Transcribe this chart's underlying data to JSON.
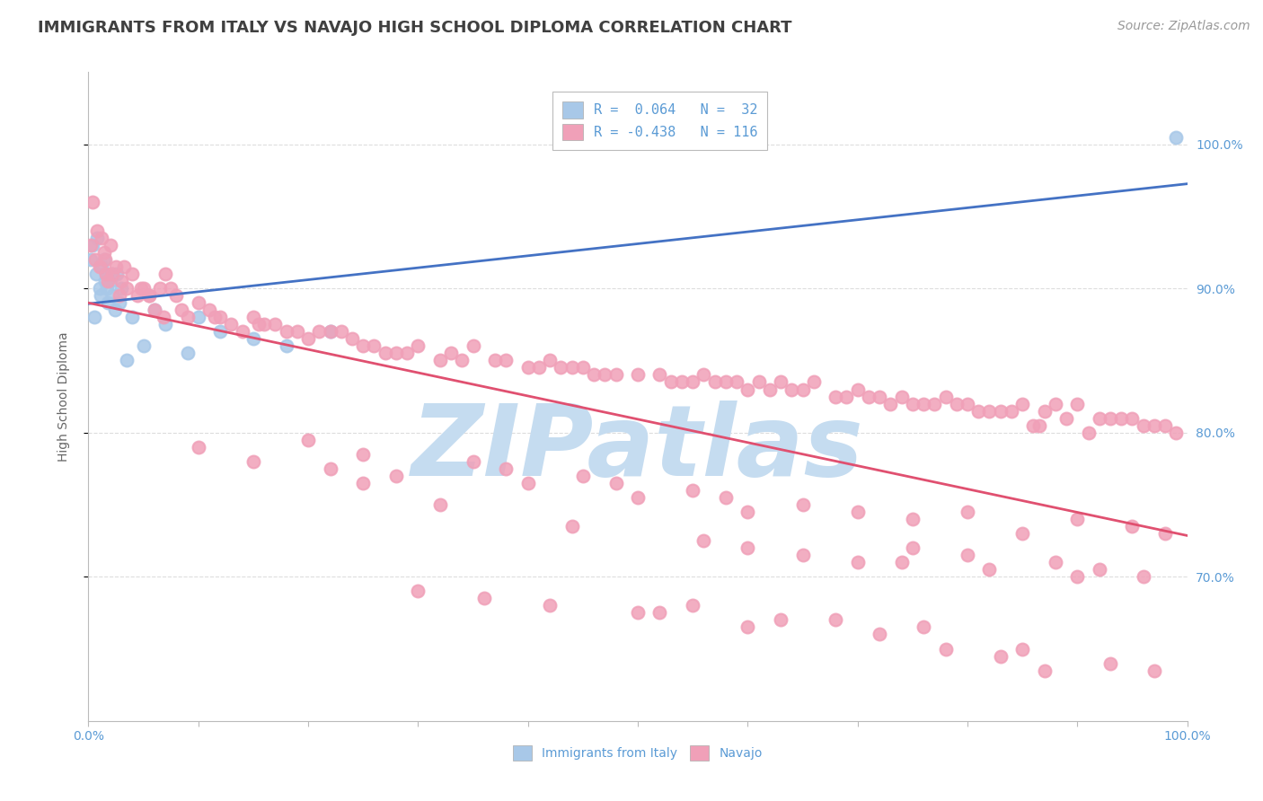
{
  "title": "IMMIGRANTS FROM ITALY VS NAVAJO HIGH SCHOOL DIPLOMA CORRELATION CHART",
  "source_text": "Source: ZipAtlas.com",
  "ylabel": "High School Diploma",
  "watermark": "ZIPatlas",
  "legend_box": {
    "italy_r": "0.064",
    "italy_n": "32",
    "navajo_r": "-0.438",
    "navajo_n": "116"
  },
  "blue_color": "#A8C8E8",
  "pink_color": "#F0A0B8",
  "blue_line_color": "#4472C4",
  "pink_line_color": "#E05070",
  "axis_label_color": "#5B9BD5",
  "title_color": "#404040",
  "italy_points_x": [
    0.2,
    0.4,
    0.5,
    0.7,
    0.8,
    1.0,
    1.1,
    1.2,
    1.4,
    1.5,
    1.6,
    1.7,
    1.8,
    2.0,
    2.1,
    2.2,
    2.4,
    2.6,
    2.8,
    3.0,
    3.5,
    4.0,
    5.0,
    6.0,
    7.0,
    9.0,
    10.0,
    12.0,
    15.0,
    18.0,
    22.0,
    99.0
  ],
  "italy_points_y": [
    92.0,
    93.0,
    88.0,
    91.0,
    93.5,
    90.0,
    89.5,
    91.5,
    92.0,
    90.5,
    91.0,
    90.0,
    89.0,
    90.5,
    91.0,
    89.5,
    88.5,
    91.0,
    89.0,
    90.0,
    85.0,
    88.0,
    86.0,
    88.5,
    87.5,
    85.5,
    88.0,
    87.0,
    86.5,
    86.0,
    87.0,
    100.5
  ],
  "navajo_points_x": [
    0.2,
    0.4,
    0.6,
    0.8,
    1.0,
    1.2,
    1.4,
    1.6,
    1.8,
    2.0,
    2.5,
    3.0,
    3.5,
    4.0,
    4.5,
    5.0,
    5.5,
    6.0,
    7.0,
    8.0,
    9.0,
    10.0,
    11.0,
    12.0,
    13.0,
    14.0,
    15.0,
    16.0,
    18.0,
    20.0,
    22.0,
    24.0,
    26.0,
    28.0,
    30.0,
    32.0,
    35.0,
    38.0,
    40.0,
    42.0,
    45.0,
    48.0,
    50.0,
    53.0,
    56.0,
    58.0,
    60.0,
    63.0,
    65.0,
    68.0,
    70.0,
    72.0,
    75.0,
    78.0,
    80.0,
    82.0,
    85.0,
    87.0,
    90.0,
    92.0,
    95.0,
    97.0,
    99.0,
    3.2,
    6.5,
    11.5,
    17.0,
    21.0,
    29.0,
    37.0,
    44.0,
    52.0,
    57.0,
    64.0,
    71.0,
    79.0,
    83.0,
    88.0,
    93.0,
    96.0,
    1.5,
    4.8,
    8.5,
    19.0,
    25.0,
    34.0,
    47.0,
    55.0,
    62.0,
    69.0,
    76.0,
    84.0,
    89.0,
    94.0,
    98.0,
    2.2,
    7.5,
    23.0,
    43.0,
    54.0,
    61.0,
    73.0,
    81.0,
    86.0,
    91.0,
    2.8,
    5.5,
    15.5,
    27.0,
    41.0,
    59.0,
    74.0,
    86.5,
    6.8,
    33.0,
    46.0,
    66.0,
    77.0
  ],
  "navajo_points_y": [
    93.0,
    96.0,
    92.0,
    94.0,
    91.5,
    93.5,
    92.5,
    91.0,
    90.5,
    93.0,
    91.5,
    90.5,
    90.0,
    91.0,
    89.5,
    90.0,
    89.5,
    88.5,
    91.0,
    89.5,
    88.0,
    89.0,
    88.5,
    88.0,
    87.5,
    87.0,
    88.0,
    87.5,
    87.0,
    86.5,
    87.0,
    86.5,
    86.0,
    85.5,
    86.0,
    85.0,
    86.0,
    85.0,
    84.5,
    85.0,
    84.5,
    84.0,
    84.0,
    83.5,
    84.0,
    83.5,
    83.0,
    83.5,
    83.0,
    82.5,
    83.0,
    82.5,
    82.0,
    82.5,
    82.0,
    81.5,
    82.0,
    81.5,
    82.0,
    81.0,
    81.0,
    80.5,
    80.0,
    91.5,
    90.0,
    88.0,
    87.5,
    87.0,
    85.5,
    85.0,
    84.5,
    84.0,
    83.5,
    83.0,
    82.5,
    82.0,
    81.5,
    82.0,
    81.0,
    80.5,
    92.0,
    90.0,
    88.5,
    87.0,
    86.0,
    85.0,
    84.0,
    83.5,
    83.0,
    82.5,
    82.0,
    81.5,
    81.0,
    81.0,
    80.5,
    91.0,
    90.0,
    87.0,
    84.5,
    83.5,
    83.5,
    82.0,
    81.5,
    80.5,
    80.0,
    89.5,
    89.5,
    87.5,
    85.5,
    84.5,
    83.5,
    82.5,
    80.5,
    88.0,
    85.5,
    84.0,
    83.5,
    82.0
  ],
  "navajo_low_x": [
    10.0,
    15.0,
    20.0,
    22.0,
    25.0,
    28.0,
    35.0,
    38.0,
    40.0,
    45.0,
    48.0,
    50.0,
    55.0,
    58.0,
    60.0,
    65.0,
    70.0,
    75.0,
    80.0,
    85.0,
    90.0,
    95.0,
    98.0,
    60.0,
    65.0,
    70.0,
    75.0,
    80.0,
    82.0,
    88.0,
    92.0,
    96.0,
    50.0,
    55.0,
    60.0,
    63.0,
    72.0,
    78.0,
    83.0,
    87.0,
    93.0,
    97.0,
    30.0,
    36.0,
    42.0,
    52.0,
    68.0,
    76.0,
    85.0,
    25.0,
    32.0,
    44.0,
    56.0,
    74.0,
    90.0
  ],
  "navajo_low_y": [
    79.0,
    78.0,
    79.5,
    77.5,
    78.5,
    77.0,
    78.0,
    77.5,
    76.5,
    77.0,
    76.5,
    75.5,
    76.0,
    75.5,
    74.5,
    75.0,
    74.5,
    74.0,
    74.5,
    73.0,
    74.0,
    73.5,
    73.0,
    72.0,
    71.5,
    71.0,
    72.0,
    71.5,
    70.5,
    71.0,
    70.5,
    70.0,
    67.5,
    68.0,
    66.5,
    67.0,
    66.0,
    65.0,
    64.5,
    63.5,
    64.0,
    63.5,
    69.0,
    68.5,
    68.0,
    67.5,
    67.0,
    66.5,
    65.0,
    76.5,
    75.0,
    73.5,
    72.5,
    71.0,
    70.0
  ],
  "xlim": [
    0,
    100
  ],
  "ylim": [
    60,
    105
  ],
  "right_yticks": [
    70.0,
    80.0,
    90.0,
    100.0
  ],
  "grid_color": "#DDDDDD",
  "background_color": "#FFFFFF",
  "watermark_color": "#C5DCF0",
  "watermark_fontsize": 80,
  "title_fontsize": 13,
  "source_fontsize": 10,
  "axis_tick_fontsize": 10,
  "marker_size": 100,
  "marker_linewidth": 1.5
}
